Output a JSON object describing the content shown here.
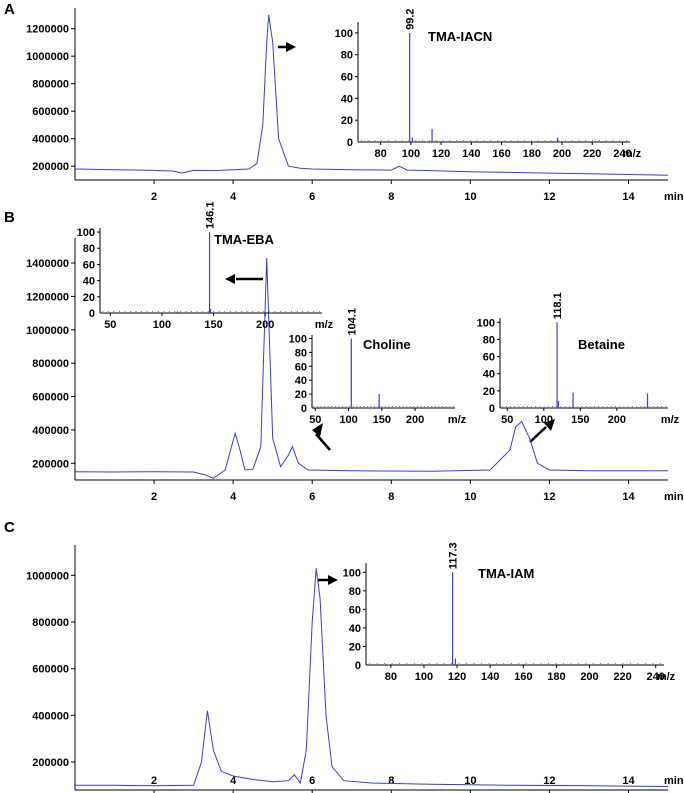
{
  "colors": {
    "trace": "#3b3bd6",
    "axis": "#000000"
  },
  "chart_data": [
    {
      "panel": "A",
      "type": "line",
      "x_unit": "min",
      "xlim": [
        0,
        15
      ],
      "xticks": [
        2,
        4,
        6,
        8,
        10,
        12,
        14
      ],
      "ylim": [
        100000,
        1350000
      ],
      "yticks": [
        200000,
        400000,
        600000,
        800000,
        1000000,
        1200000
      ],
      "series": [
        {
          "x": [
            0,
            1,
            2,
            2.5,
            2.7,
            3,
            3.5,
            4,
            4.4,
            4.6,
            4.75,
            4.85,
            4.9,
            5.0,
            5.15,
            5.4,
            5.7,
            6,
            7,
            8,
            8.2,
            8.4,
            9,
            10,
            11,
            12,
            13,
            14,
            15
          ],
          "y": [
            180000,
            175000,
            170000,
            165000,
            150000,
            170000,
            168000,
            175000,
            180000,
            220000,
            500000,
            1100000,
            1300000,
            1100000,
            400000,
            200000,
            185000,
            180000,
            175000,
            172000,
            200000,
            172000,
            168000,
            160000,
            155000,
            150000,
            145000,
            140000,
            135000
          ]
        }
      ],
      "insets": [
        {
          "compound": "TMA-IACN",
          "type": "bar",
          "x_unit": "m/z",
          "xlim": [
            65,
            245
          ],
          "xticks": [
            80,
            100,
            120,
            140,
            160,
            180,
            200,
            220,
            240
          ],
          "ylim": [
            0,
            110
          ],
          "yticks": [
            20,
            40,
            60,
            80,
            100
          ],
          "base_peak_label": "99.2",
          "peaks": [
            {
              "x": 99.2,
              "y": 100
            },
            {
              "x": 101,
              "y": 4
            },
            {
              "x": 114,
              "y": 12
            },
            {
              "x": 197,
              "y": 4
            }
          ]
        }
      ]
    },
    {
      "panel": "B",
      "type": "line",
      "x_unit": "min",
      "xlim": [
        0,
        15
      ],
      "xticks": [
        2,
        4,
        6,
        8,
        10,
        12,
        14
      ],
      "ylim": [
        100000,
        1550000
      ],
      "yticks": [
        200000,
        400000,
        600000,
        800000,
        1000000,
        1200000,
        1400000
      ],
      "series": [
        {
          "x": [
            0,
            1,
            2,
            3,
            3.3,
            3.5,
            3.8,
            4.05,
            4.15,
            4.3,
            4.5,
            4.7,
            4.85,
            5.0,
            5.2,
            5.4,
            5.5,
            5.65,
            5.9,
            7,
            9,
            10.5,
            11,
            11.15,
            11.3,
            11.5,
            11.7,
            12,
            13,
            14,
            15
          ],
          "y": [
            150000,
            148000,
            150000,
            148000,
            130000,
            110000,
            160000,
            380000,
            300000,
            160000,
            165000,
            300000,
            1430000,
            350000,
            180000,
            250000,
            300000,
            200000,
            160000,
            155000,
            152000,
            160000,
            280000,
            420000,
            450000,
            350000,
            200000,
            160000,
            155000,
            155000,
            155000
          ]
        }
      ],
      "insets": [
        {
          "compound": "TMA-EBA",
          "type": "bar",
          "x_unit": "m/z",
          "xlim": [
            40,
            255
          ],
          "xticks": [
            50,
            100,
            150,
            200
          ],
          "ylim": [
            0,
            105
          ],
          "yticks": [
            20,
            40,
            60,
            80,
            100
          ],
          "base_peak_label": "146.1",
          "peaks": [
            {
              "x": 146.1,
              "y": 100
            },
            {
              "x": 147,
              "y": 5
            },
            {
              "x": 115,
              "y": 2
            }
          ]
        },
        {
          "compound": "Choline",
          "type": "bar",
          "x_unit": "m/z",
          "xlim": [
            45,
            260
          ],
          "xticks": [
            50,
            100,
            150,
            200
          ],
          "ylim": [
            0,
            105
          ],
          "yticks": [
            20,
            40,
            60,
            80,
            100
          ],
          "base_peak_label": "104.1",
          "peaks": [
            {
              "x": 104.1,
              "y": 100
            },
            {
              "x": 146,
              "y": 20
            }
          ]
        },
        {
          "compound": "Betaine",
          "type": "bar",
          "x_unit": "m/z",
          "xlim": [
            40,
            270
          ],
          "xticks": [
            50,
            100,
            150,
            200
          ],
          "ylim": [
            0,
            105
          ],
          "yticks": [
            20,
            40,
            60,
            80,
            100
          ],
          "base_peak_label": "118.1",
          "peaks": [
            {
              "x": 118.1,
              "y": 100
            },
            {
              "x": 120,
              "y": 8
            },
            {
              "x": 140,
              "y": 18
            },
            {
              "x": 242,
              "y": 17
            }
          ]
        }
      ]
    },
    {
      "panel": "C",
      "type": "line",
      "x_unit": "min",
      "xlim": [
        0,
        15
      ],
      "xticks": [
        2,
        4,
        6,
        8,
        10,
        12,
        14
      ],
      "ylim": [
        80000,
        1130000
      ],
      "yticks": [
        200000,
        400000,
        600000,
        800000,
        1000000
      ],
      "series": [
        {
          "x": [
            0,
            1,
            2,
            3,
            3.2,
            3.35,
            3.5,
            3.7,
            4.0,
            4.5,
            5.0,
            5.4,
            5.55,
            5.7,
            5.85,
            6.0,
            6.1,
            6.2,
            6.35,
            6.5,
            6.8,
            7.5,
            9,
            11,
            13,
            15
          ],
          "y": [
            100000,
            100000,
            98000,
            100000,
            200000,
            420000,
            250000,
            160000,
            140000,
            125000,
            115000,
            120000,
            145000,
            110000,
            250000,
            800000,
            1030000,
            900000,
            400000,
            180000,
            120000,
            110000,
            105000,
            100000,
            98000,
            95000
          ]
        }
      ],
      "insets": [
        {
          "compound": "TMA-IAM",
          "type": "bar",
          "x_unit": "m/z",
          "xlim": [
            65,
            245
          ],
          "xticks": [
            80,
            100,
            120,
            140,
            160,
            180,
            200,
            220,
            240
          ],
          "ylim": [
            0,
            110
          ],
          "yticks": [
            20,
            40,
            60,
            80,
            100
          ],
          "base_peak_label": "117.3",
          "peaks": [
            {
              "x": 117.3,
              "y": 100
            },
            {
              "x": 119,
              "y": 7
            }
          ]
        }
      ]
    }
  ]
}
